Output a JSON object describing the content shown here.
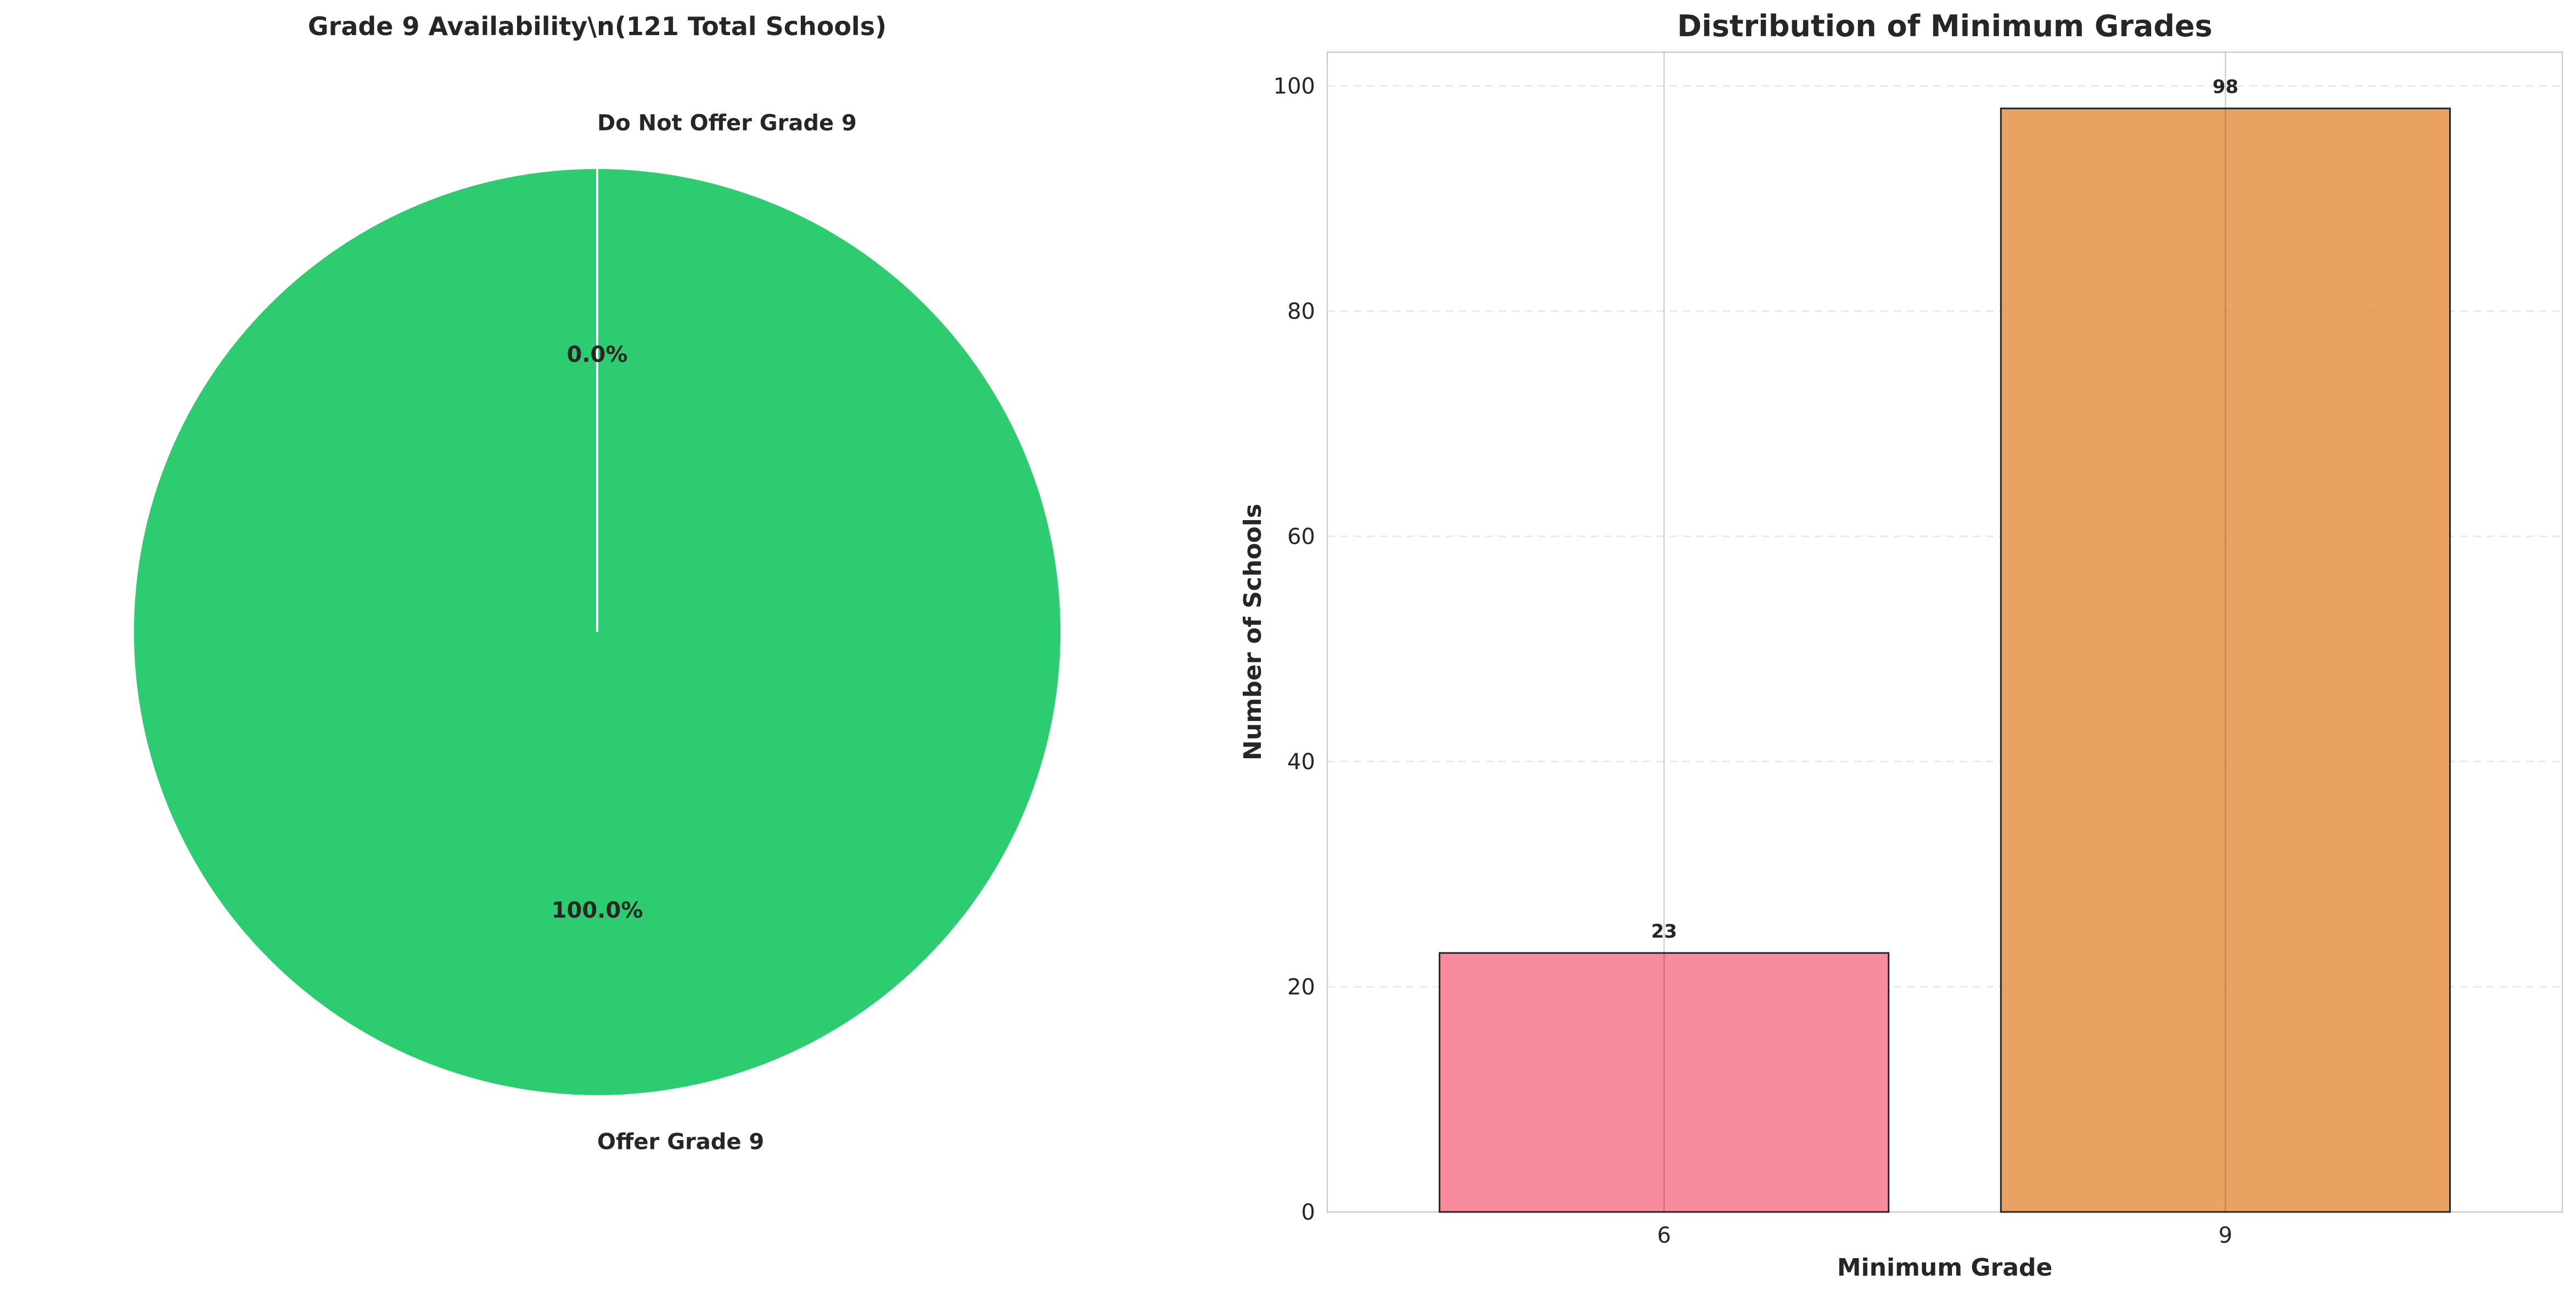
{
  "chart_data": [
    {
      "type": "pie",
      "title": "Grade 9 Availability\\n(121 Total Schools)",
      "slices": [
        {
          "label": "Offer Grade 9",
          "value": 121,
          "pct_label": "100.0%",
          "color": "#2ecc71"
        },
        {
          "label": "Do Not Offer Grade 9",
          "value": 0,
          "pct_label": "0.0%",
          "color": "#e74c3c"
        }
      ],
      "startangle_deg": 90,
      "edge_color": "#ffffff"
    },
    {
      "type": "bar",
      "title": "Distribution of Minimum Grades",
      "xlabel": "Minimum Grade",
      "ylabel": "Number of Schools",
      "categories": [
        "6",
        "9"
      ],
      "values": [
        23,
        98
      ],
      "bar_value_labels": [
        "23",
        "98"
      ],
      "colors": [
        "#f77189",
        "#e48d3f"
      ],
      "ylim": [
        0,
        103
      ],
      "yticks": [
        0,
        20,
        40,
        60,
        80,
        100
      ],
      "ytick_labels": [
        "0",
        "20",
        "40",
        "60",
        "80",
        "100"
      ],
      "grid": "y dashed",
      "edge_color": "#262626"
    }
  ]
}
